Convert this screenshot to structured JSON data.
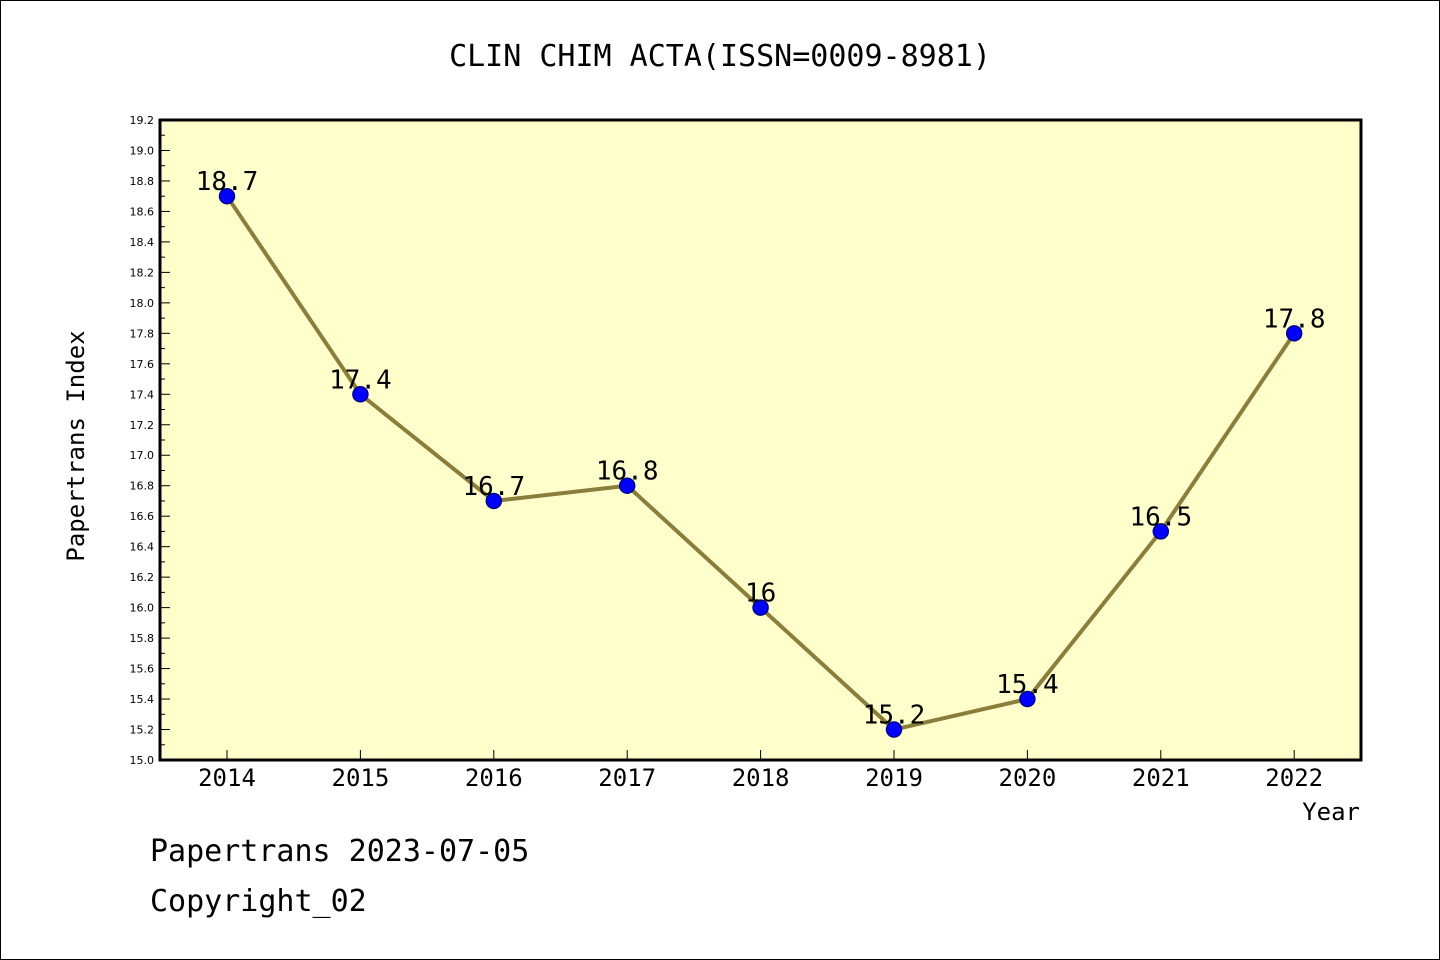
{
  "colors": {
    "plot_background": "#ffffcc",
    "line": "#8b7d3a",
    "marker_fill": "#0000ff",
    "marker_stroke": "#00008b",
    "axis": "#000000",
    "text": "#000000"
  },
  "chart_data": {
    "type": "line",
    "title": "CLIN CHIM ACTA(ISSN=0009-8981)",
    "xlabel": "Year",
    "ylabel": "Papertrans Index",
    "categories": [
      "2014",
      "2015",
      "2016",
      "2017",
      "2018",
      "2019",
      "2020",
      "2021",
      "2022"
    ],
    "series": [
      {
        "values": [
          18.7,
          17.4,
          16.7,
          16.8,
          16.0,
          15.2,
          15.4,
          16.5,
          17.8
        ],
        "data_labels": [
          "18.7",
          "17.4",
          "16.7",
          "16.8",
          "16",
          "15.2",
          "15.4",
          "16.5",
          "17.8"
        ]
      }
    ],
    "ylim": [
      15.0,
      19.2
    ],
    "yticks": [
      "15.0",
      "15.2",
      "15.4",
      "15.6",
      "15.8",
      "16.0",
      "16.2",
      "16.4",
      "16.6",
      "16.8",
      "17.0",
      "17.2",
      "17.4",
      "17.6",
      "17.8",
      "18.0",
      "18.2",
      "18.4",
      "18.6",
      "18.8",
      "19.0",
      "19.2"
    ],
    "grid": false,
    "legend": "none"
  },
  "footer": {
    "line1": "Papertrans 2023-07-05",
    "line2": "Copyright_02"
  }
}
